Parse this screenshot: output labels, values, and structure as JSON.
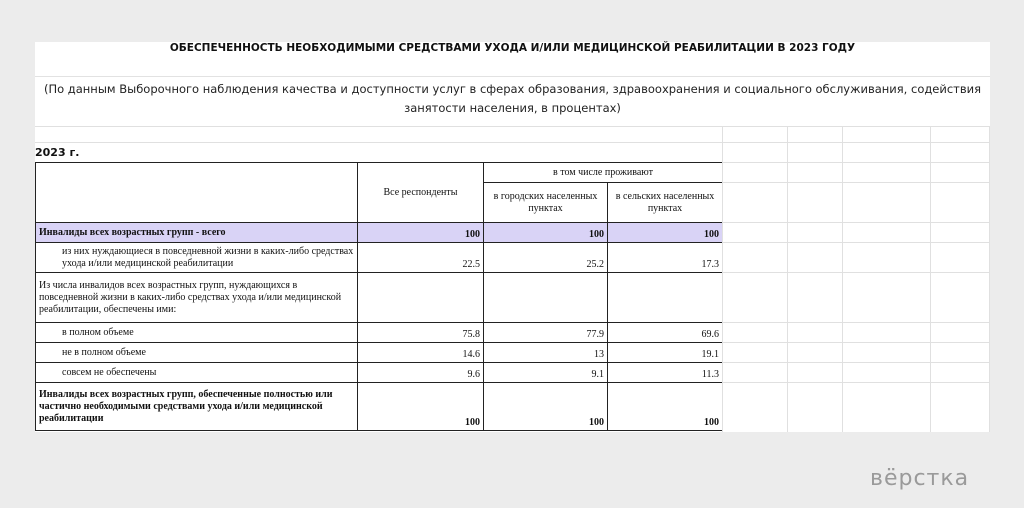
{
  "title": "ОБЕСПЕЧЕННОСТЬ НЕОБХОДИМЫМИ СРЕДСТВАМИ УХОДА И/ИЛИ МЕДИЦИНСКОЙ РЕАБИЛИТАЦИИ В 2023 ГОДУ",
  "subtitle": "(По данным Выборочного наблюдения качества и доступности услуг в сферах образования, здравоохранения и социального обслуживания, содействия занятости населения, в процентах)",
  "year": "2023 г.",
  "table": {
    "header": {
      "all": "Все респонденты",
      "group": "в том числе проживают",
      "urban": "в городских населенных пунктах",
      "rural": "в сельских населенных пунктах"
    },
    "rows": [
      [
        "Инвалиды всех возрастных групп - всего",
        100,
        100,
        100
      ],
      [
        "из них нуждающиеся в повседневной жизни в каких-либо средствах ухода и/или медицинской реабилитации",
        22.5,
        25.2,
        17.3
      ],
      [
        "Из числа инвалидов всех возрастных групп, нуждающихся в повседневной жизни в каких-либо средствах ухода и/или медицинской реабилитации, обеспечены ими:"
      ],
      [
        "в полном объеме",
        75.8,
        77.9,
        69.6
      ],
      [
        "не в полном объеме",
        14.6,
        13,
        19.1
      ],
      [
        "совсем не обеспечены",
        9.6,
        9.1,
        11.3
      ],
      [
        "Инвалиды всех возрастных групп, обеспеченные полностью или частично необходимыми средствами ухода и/или медицинской реабилитации",
        100,
        100,
        100
      ]
    ]
  },
  "watermark": "вёрстка"
}
